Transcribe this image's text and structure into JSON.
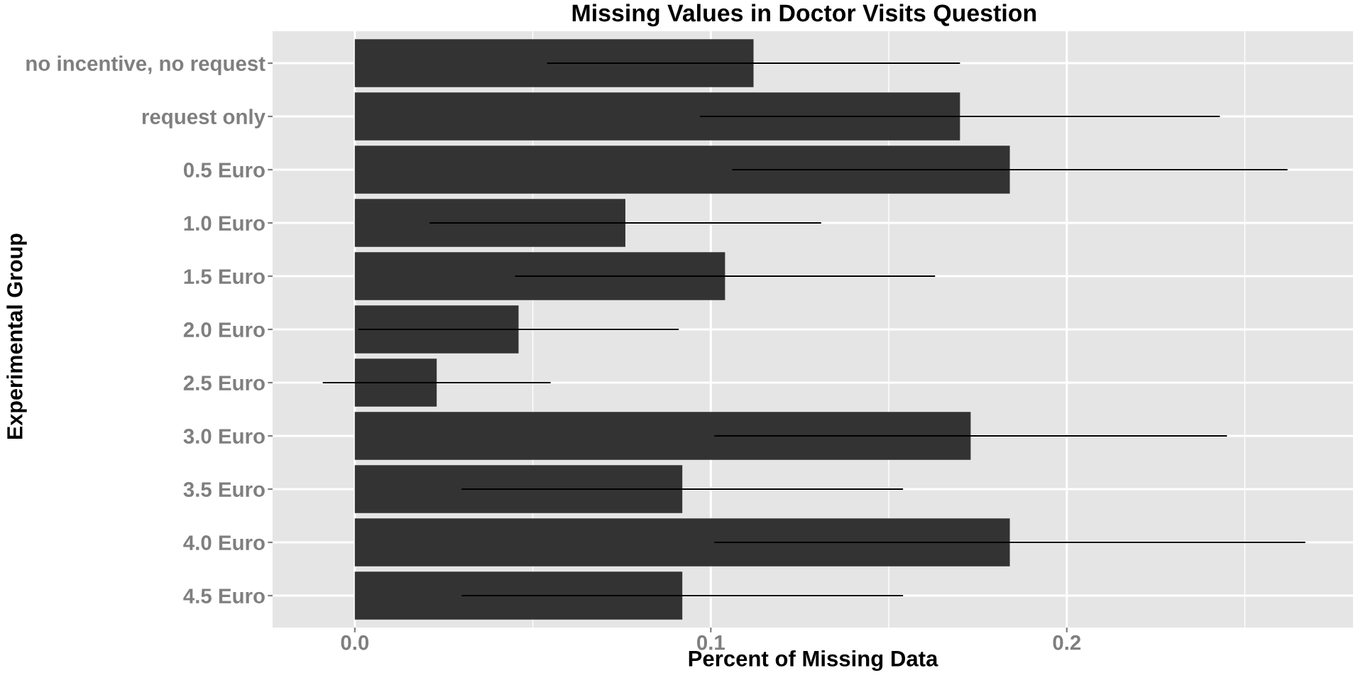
{
  "chart_data": {
    "type": "bar",
    "orientation": "horizontal",
    "title": "Missing Values in Doctor Visits Question",
    "xlabel": "Percent of Missing Data",
    "ylabel": "Experimental Group",
    "categories": [
      "no incentive, no request",
      "request only",
      "0.5 Euro",
      "1.0 Euro",
      "1.5 Euro",
      "2.0 Euro",
      "2.5 Euro",
      "3.0 Euro",
      "3.5 Euro",
      "4.0 Euro",
      "4.5 Euro"
    ],
    "values": [
      0.112,
      0.17,
      0.184,
      0.076,
      0.104,
      0.046,
      0.023,
      0.173,
      0.092,
      0.184,
      0.092
    ],
    "errors": [
      0.058,
      0.073,
      0.078,
      0.055,
      0.059,
      0.045,
      0.032,
      0.072,
      0.062,
      0.083,
      0.062
    ],
    "color": "#333333",
    "xlim": [
      -0.0231,
      0.2804
    ],
    "xticks": [
      {
        "value": 0,
        "label": "0.0"
      },
      {
        "value": 0.05,
        "label": null
      },
      {
        "value": 0.1,
        "label": "0.1"
      },
      {
        "value": 0.15,
        "label": null
      },
      {
        "value": 0.2,
        "label": "0.2"
      },
      {
        "value": 0.25,
        "label": null
      }
    ],
    "grid": true
  }
}
